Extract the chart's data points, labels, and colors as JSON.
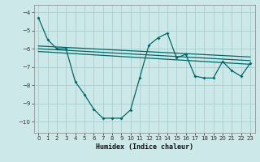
{
  "xlabel": "Humidex (Indice chaleur)",
  "background_color": "#cce8e8",
  "grid_color": "#aacece",
  "line_color": "#006868",
  "xlim": [
    -0.5,
    23.5
  ],
  "ylim": [
    -10.6,
    -3.6
  ],
  "yticks": [
    -10,
    -9,
    -8,
    -7,
    -6,
    -5,
    -4
  ],
  "xticks": [
    0,
    1,
    2,
    3,
    4,
    5,
    6,
    7,
    8,
    9,
    10,
    11,
    12,
    13,
    14,
    15,
    16,
    17,
    18,
    19,
    20,
    21,
    22,
    23
  ],
  "series1_x": [
    0,
    1,
    2,
    3,
    4,
    5,
    6,
    7,
    8,
    9,
    10,
    11,
    12,
    13,
    14,
    15,
    16,
    17,
    18,
    19,
    20,
    21,
    22,
    23
  ],
  "series1_y": [
    -4.3,
    -5.5,
    -6.0,
    -6.0,
    -7.8,
    -8.5,
    -9.3,
    -9.8,
    -9.8,
    -9.8,
    -9.35,
    -7.6,
    -5.8,
    -5.4,
    -5.15,
    -6.5,
    -6.3,
    -7.5,
    -7.6,
    -7.6,
    -6.7,
    -7.2,
    -7.5,
    -6.8
  ],
  "line2_x": [
    0,
    23
  ],
  "line2_y": [
    -5.85,
    -6.45
  ],
  "line3_x": [
    0,
    23
  ],
  "line3_y": [
    -6.0,
    -6.65
  ],
  "line4_x": [
    0,
    23
  ],
  "line4_y": [
    -6.15,
    -6.85
  ]
}
